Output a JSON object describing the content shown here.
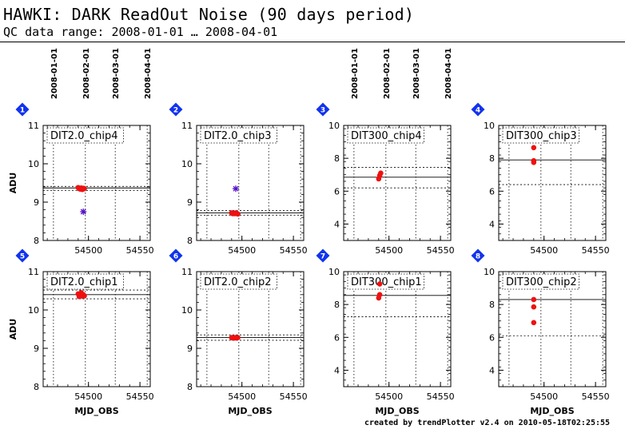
{
  "header": {
    "title": "HAWKI: DARK ReadOut Noise (90 days period)",
    "subtitle": "QC data range: 2008-01-01 … 2008-04-01"
  },
  "footer": "created by trendPlotter v2.4 on 2010-05-18T02:25:55",
  "date_axis": {
    "labels": [
      "2008-01-01",
      "2008-02-01",
      "2008-03-01",
      "2008-04-01"
    ],
    "mjd": [
      54466,
      54497,
      54526,
      54557
    ]
  },
  "colors": {
    "data": "#ee1111",
    "outlier": "#5511cc",
    "badge": "#1133ee"
  },
  "chart_data": [
    {
      "type": "scatter",
      "panel": "1",
      "label": "DIT2.0_chip4",
      "ylabel": "ADU",
      "xlabel": "",
      "xlim": [
        54456,
        54560
      ],
      "ylim": [
        8,
        11
      ],
      "xticks": [
        54500,
        54550
      ],
      "yticks": [
        8,
        9,
        10,
        11
      ],
      "points": [
        [
          54490,
          9.38
        ],
        [
          54491,
          9.35
        ],
        [
          54492,
          9.34
        ],
        [
          54493,
          9.37
        ],
        [
          54494,
          9.33
        ],
        [
          54495,
          9.36
        ],
        [
          54496,
          9.35
        ]
      ],
      "outliers": [
        [
          54495,
          8.75
        ]
      ],
      "solid": [
        9.37
      ],
      "dashed": [
        9.41,
        9.3
      ]
    },
    {
      "type": "scatter",
      "panel": "2",
      "label": "DIT2.0_chip3",
      "ylabel": "",
      "xlabel": "",
      "xlim": [
        54456,
        54560
      ],
      "ylim": [
        8,
        11
      ],
      "xticks": [
        54500,
        54550
      ],
      "yticks": [
        8,
        9,
        10,
        11
      ],
      "points": [
        [
          54490,
          8.72
        ],
        [
          54491,
          8.7
        ],
        [
          54492,
          8.71
        ],
        [
          54493,
          8.7
        ],
        [
          54494,
          8.72
        ],
        [
          54495,
          8.71
        ],
        [
          54496,
          8.69
        ]
      ],
      "outliers": [
        [
          54494,
          9.35
        ]
      ],
      "solid": [
        8.72
      ],
      "dashed": [
        8.78,
        8.66
      ]
    },
    {
      "type": "scatter",
      "panel": "3",
      "label": "DIT300_chip4",
      "ylabel": "",
      "xlabel": "",
      "xlim": [
        54456,
        54560
      ],
      "ylim": [
        3,
        10
      ],
      "xticks": [
        54500,
        54550
      ],
      "yticks": [
        4,
        6,
        8,
        10
      ],
      "points": [
        [
          54490,
          6.75
        ],
        [
          54491,
          6.95
        ],
        [
          54492,
          7.1
        ]
      ],
      "outliers": [],
      "solid": [
        6.85
      ],
      "dashed": [
        7.45,
        6.2
      ]
    },
    {
      "type": "scatter",
      "panel": "4",
      "label": "DIT300_chip3",
      "ylabel": "",
      "xlabel": "",
      "xlim": [
        54456,
        54560
      ],
      "ylim": [
        3,
        10
      ],
      "xticks": [
        54500,
        54550
      ],
      "yticks": [
        4,
        6,
        8,
        10
      ],
      "points": [
        [
          54490,
          8.65
        ],
        [
          54490,
          7.85
        ],
        [
          54490,
          7.75
        ]
      ],
      "outliers": [],
      "solid": [
        7.9
      ],
      "dashed": [
        6.4
      ]
    },
    {
      "type": "scatter",
      "panel": "5",
      "label": "DIT2.0_chip1",
      "ylabel": "ADU",
      "xlabel": "MJD_OBS",
      "xlim": [
        54456,
        54560
      ],
      "ylim": [
        8,
        11
      ],
      "xticks": [
        54500,
        54550
      ],
      "yticks": [
        8,
        9,
        10,
        11
      ],
      "points": [
        [
          54490,
          10.42
        ],
        [
          54491,
          10.35
        ],
        [
          54492,
          10.38
        ],
        [
          54493,
          10.45
        ],
        [
          54494,
          10.36
        ],
        [
          54495,
          10.4
        ],
        [
          54496,
          10.37
        ]
      ],
      "outliers": [],
      "solid": [
        10.4
      ],
      "dashed": [
        10.52,
        10.29
      ]
    },
    {
      "type": "scatter",
      "panel": "6",
      "label": "DIT2.0_chip2",
      "ylabel": "",
      "xlabel": "MJD_OBS",
      "xlim": [
        54456,
        54560
      ],
      "ylim": [
        8,
        11
      ],
      "xticks": [
        54500,
        54550
      ],
      "yticks": [
        8,
        9,
        10,
        11
      ],
      "points": [
        [
          54490,
          9.28
        ],
        [
          54491,
          9.27
        ],
        [
          54492,
          9.28
        ],
        [
          54493,
          9.27
        ],
        [
          54494,
          9.28
        ],
        [
          54495,
          9.27
        ],
        [
          54496,
          9.28
        ]
      ],
      "outliers": [],
      "solid": [
        9.28
      ],
      "dashed": [
        9.35,
        9.21
      ]
    },
    {
      "type": "scatter",
      "panel": "7",
      "label": "DIT300_chip1",
      "ylabel": "",
      "xlabel": "MJD_OBS",
      "xlim": [
        54456,
        54560
      ],
      "ylim": [
        3,
        10
      ],
      "xticks": [
        54500,
        54550
      ],
      "yticks": [
        4,
        6,
        8,
        10
      ],
      "points": [
        [
          54490,
          8.4
        ],
        [
          54491,
          8.6
        ],
        [
          54491,
          9.25
        ]
      ],
      "outliers": [],
      "solid": [
        8.55
      ],
      "dashed": [
        7.25
      ]
    },
    {
      "type": "scatter",
      "panel": "8",
      "label": "DIT300_chip2",
      "ylabel": "",
      "xlabel": "MJD_OBS",
      "xlim": [
        54456,
        54560
      ],
      "ylim": [
        3,
        10
      ],
      "xticks": [
        54500,
        54550
      ],
      "yticks": [
        4,
        6,
        8,
        10
      ],
      "points": [
        [
          54490,
          8.3
        ],
        [
          54490,
          7.85
        ],
        [
          54490,
          6.9
        ]
      ],
      "outliers": [],
      "solid": [
        8.3
      ],
      "dashed": [
        6.1
      ]
    }
  ]
}
